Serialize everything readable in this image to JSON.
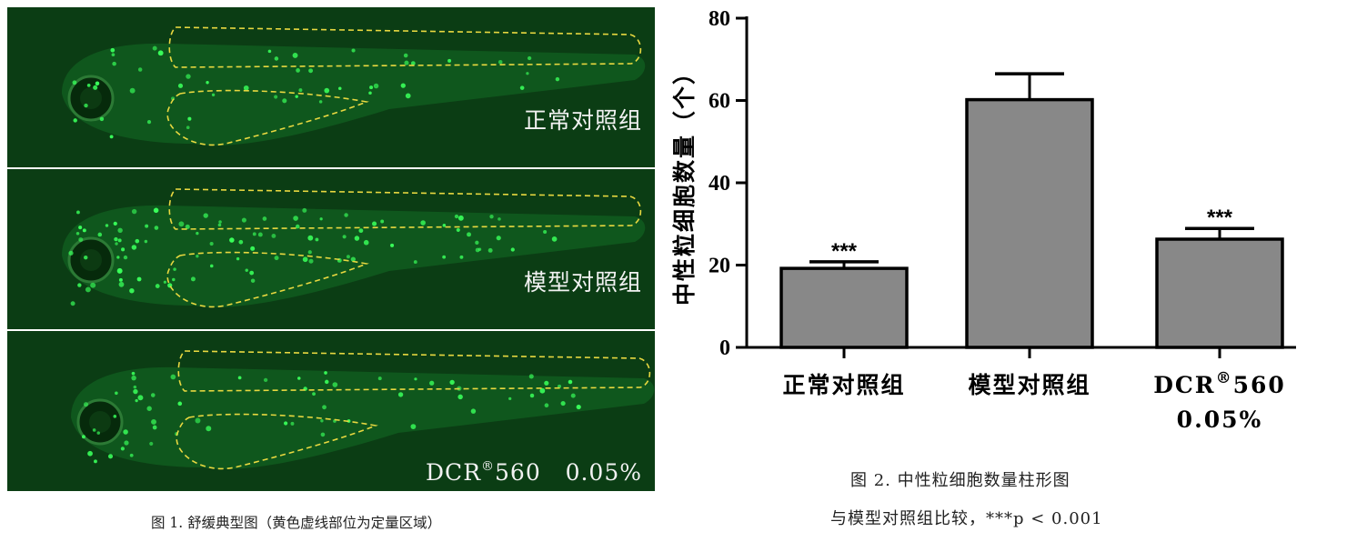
{
  "figure1": {
    "panels": [
      {
        "label": "正常对照组",
        "label_suffix": ""
      },
      {
        "label": "模型对照组",
        "label_suffix": ""
      },
      {
        "label": "DCR",
        "label_sup": "®",
        "label_suffix": "560   0.05%"
      }
    ],
    "caption": "图 1. 舒缓典型图（黄色虚线部位为定量区域）",
    "colors": {
      "background": "#0b3d14",
      "cells": "#39ff5a",
      "outline": "#e8d840"
    }
  },
  "figure2": {
    "caption_line1": "图 2. 中性粒细胞数量柱形图",
    "caption_line2": "与模型对照组比较，***p < 0.001"
  },
  "chart_data": {
    "type": "bar",
    "categories": [
      "正常对照组",
      "模型对照组",
      "DCR®560 0.05%"
    ],
    "category_lines": [
      [
        "正常对照组"
      ],
      [
        "模型对照组"
      ],
      [
        "DCR®560",
        "0.05%"
      ]
    ],
    "values": [
      19.2,
      60.2,
      26.3
    ],
    "errors": [
      1.6,
      6.3,
      2.6
    ],
    "significance": [
      "***",
      "",
      "***"
    ],
    "ylabel": "中性粒细胞数量（个）",
    "xlabel": "",
    "ylim": [
      0,
      80
    ],
    "yticks": [
      0,
      20,
      40,
      60,
      80
    ],
    "bar_color": "#888888",
    "grid": false,
    "legend": false
  }
}
